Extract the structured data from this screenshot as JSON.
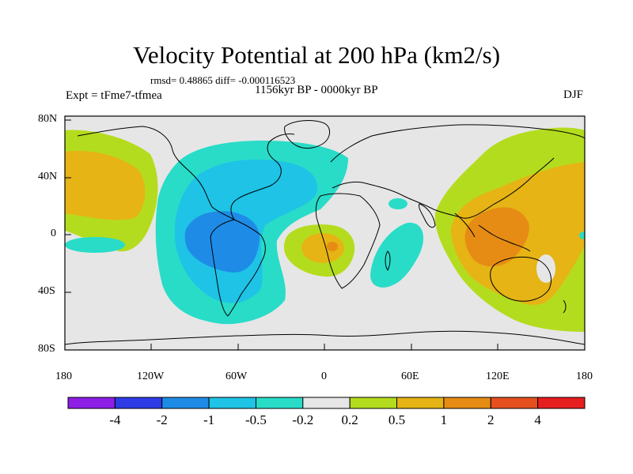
{
  "header": {
    "title": "Velocity Potential at 200 hPa (km2/s)",
    "stats": "rmsd= 0.48865 diff= -0.000116523",
    "period": "1156kyr BP - 0000kyr BP",
    "experiment": "Expt = tFme7-tfmea",
    "season": "DJF"
  },
  "axes": {
    "y_ticks": [
      "80N",
      "40N",
      "0",
      "40S",
      "80S"
    ],
    "x_ticks": [
      "180",
      "120W",
      "60W",
      "0",
      "60E",
      "120E",
      "180"
    ]
  },
  "colorbar": {
    "labels": [
      "-4",
      "-2",
      "-1",
      "-0.5",
      "-0.2",
      "0.2",
      "0.5",
      "1",
      "2",
      "4"
    ],
    "colors": [
      "#8c1ee6",
      "#2e3ce6",
      "#1e8ce6",
      "#1ec3e6",
      "#28dcc8",
      "#e6e6e6",
      "#b4dc1e",
      "#e6b414",
      "#e68c14",
      "#e6501e",
      "#e61e1e"
    ]
  },
  "map_colors": {
    "land_outline": "#000000",
    "background": "#e6e6e6"
  }
}
